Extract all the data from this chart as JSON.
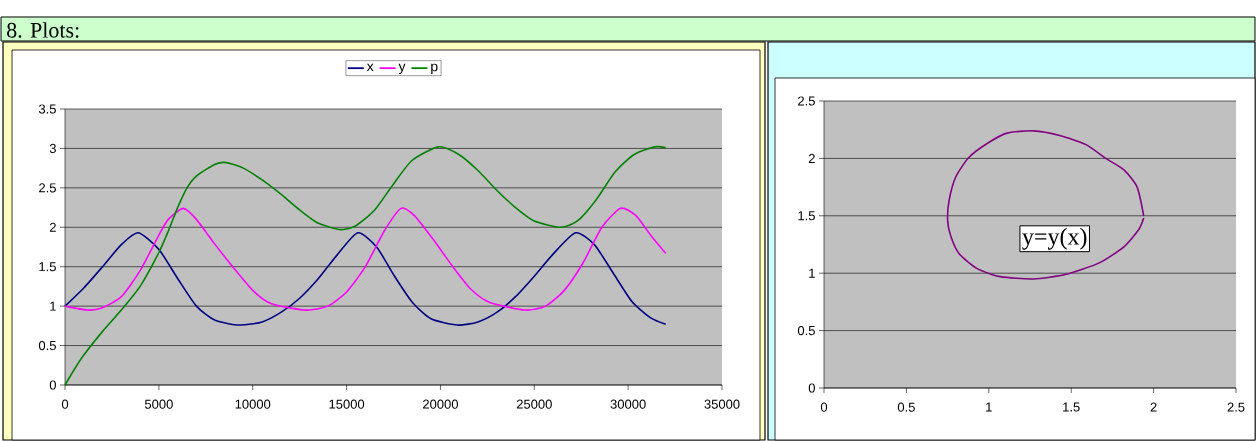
{
  "chart_data": [
    {
      "type": "line",
      "title": "8. Plots:",
      "legend": "top",
      "grid": "y",
      "xlim": [
        0,
        35000
      ],
      "xticks": [
        0,
        5000,
        10000,
        15000,
        20000,
        25000,
        30000,
        35000
      ],
      "ylim": [
        0,
        3.5
      ],
      "yticks": [
        0,
        0.5,
        1,
        1.5,
        2,
        2.5,
        3,
        3.5
      ],
      "series": [
        {
          "name": "x",
          "color": "#000080",
          "x": [
            0,
            1000,
            2000,
            3000,
            3900,
            5000,
            6000,
            7000,
            8000,
            9300,
            10500,
            11500,
            12500,
            13500,
            14500,
            15600,
            16600,
            17500,
            18500,
            19500,
            20900,
            22000,
            23000,
            24000,
            25000,
            26000,
            27200,
            28200,
            29200,
            30200,
            31200,
            32000
          ],
          "values": [
            1.0,
            1.23,
            1.5,
            1.78,
            1.93,
            1.72,
            1.35,
            1.0,
            0.82,
            0.76,
            0.8,
            0.92,
            1.1,
            1.35,
            1.65,
            1.93,
            1.75,
            1.4,
            1.05,
            0.84,
            0.76,
            0.8,
            0.92,
            1.12,
            1.38,
            1.66,
            1.93,
            1.78,
            1.42,
            1.06,
            0.85,
            0.77
          ]
        },
        {
          "name": "y",
          "color": "#ff00ff",
          "x": [
            0,
            1200,
            2000,
            3000,
            4000,
            5000,
            5500,
            6300,
            7000,
            8000,
            9000,
            10000,
            11000,
            12800,
            14000,
            15000,
            16000,
            17000,
            17900,
            18600,
            19600,
            20600,
            21600,
            22600,
            24500,
            25600,
            26600,
            27600,
            28600,
            29600,
            30400,
            31200,
            32000
          ],
          "values": [
            1.0,
            0.95,
            0.98,
            1.12,
            1.45,
            1.9,
            2.1,
            2.24,
            2.1,
            1.78,
            1.48,
            1.2,
            1.03,
            0.95,
            1.0,
            1.18,
            1.5,
            1.95,
            2.24,
            2.15,
            1.85,
            1.52,
            1.22,
            1.05,
            0.95,
            1.0,
            1.2,
            1.55,
            2.0,
            2.24,
            2.15,
            1.9,
            1.67
          ]
        },
        {
          "name": "p",
          "color": "#008000",
          "x": [
            0,
            500,
            1000,
            2000,
            3000,
            4000,
            5000,
            5500,
            6000,
            6500,
            7000,
            8000,
            8600,
            9500,
            10500,
            11500,
            12500,
            13500,
            14700,
            15500,
            16500,
            17500,
            18500,
            19900,
            21000,
            22000,
            23000,
            24000,
            25000,
            26400,
            27300,
            28300,
            29300,
            30300,
            31400,
            32000
          ],
          "values": [
            0,
            0.2,
            0.38,
            0.68,
            0.95,
            1.25,
            1.68,
            1.95,
            2.25,
            2.5,
            2.65,
            2.8,
            2.82,
            2.75,
            2.6,
            2.42,
            2.22,
            2.05,
            1.97,
            2.02,
            2.22,
            2.55,
            2.85,
            3.02,
            2.92,
            2.72,
            2.47,
            2.25,
            2.08,
            2.0,
            2.08,
            2.35,
            2.7,
            2.92,
            3.02,
            3.01
          ]
        }
      ]
    },
    {
      "type": "line",
      "grid": "y",
      "annotations": [
        "y=y(x)"
      ],
      "xlim": [
        0,
        2.5
      ],
      "xticks": [
        0,
        0.5,
        1,
        1.5,
        2,
        2.5
      ],
      "ylim": [
        0,
        2.5
      ],
      "yticks": [
        0,
        0.5,
        1,
        1.5,
        2,
        2.5
      ],
      "series": [
        {
          "color": "#800080",
          "x": [
            1.94,
            1.9,
            1.82,
            1.71,
            1.59,
            1.43,
            1.27,
            1.11,
            0.99,
            0.88,
            0.8,
            0.76,
            0.75,
            0.77,
            0.82,
            0.93,
            1.07,
            1.27,
            1.47,
            1.67,
            1.82,
            1.91,
            1.94
          ],
          "values": [
            1.5,
            1.75,
            1.9,
            2.0,
            2.12,
            2.2,
            2.24,
            2.22,
            2.13,
            2.01,
            1.84,
            1.64,
            1.46,
            1.32,
            1.17,
            1.04,
            0.97,
            0.95,
            0.99,
            1.09,
            1.23,
            1.38,
            1.48
          ]
        }
      ]
    }
  ]
}
